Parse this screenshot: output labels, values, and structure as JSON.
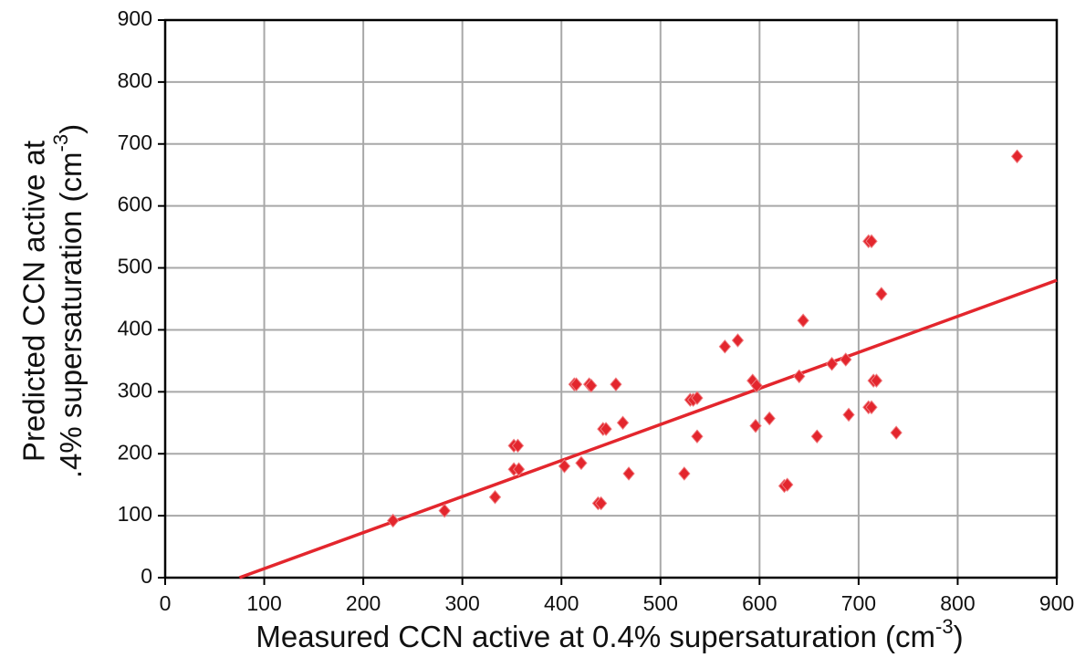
{
  "chart_data": {
    "type": "scatter",
    "xlabel": [
      "Measured CCN active at 0.4% supersaturation (cm",
      "-3",
      ")"
    ],
    "ylabel": [
      "Predicted CCN active at",
      ".4% supersaturation (cm",
      "-3",
      ")"
    ],
    "xlim": [
      0,
      900
    ],
    "ylim": [
      0,
      900
    ],
    "xticks": [
      0,
      100,
      200,
      300,
      400,
      500,
      600,
      700,
      800,
      900
    ],
    "yticks": [
      0,
      100,
      200,
      300,
      400,
      500,
      600,
      700,
      800,
      900
    ],
    "grid": true,
    "color": "#e3262d",
    "x": [
      230,
      282,
      333,
      352,
      356,
      352,
      357,
      403,
      413,
      415,
      420,
      428,
      430,
      437,
      440,
      442,
      445,
      455,
      462,
      468,
      524,
      530,
      533,
      537,
      537,
      565,
      578,
      593,
      596,
      597,
      610,
      625,
      628,
      640,
      644,
      658,
      673,
      687,
      690,
      710,
      713,
      710,
      713,
      715,
      718,
      723,
      738,
      860
    ],
    "values": [
      92,
      108,
      130,
      213,
      213,
      175,
      175,
      180,
      312,
      312,
      185,
      312,
      310,
      120,
      120,
      240,
      240,
      312,
      250,
      168,
      168,
      287,
      287,
      290,
      228,
      373,
      383,
      318,
      245,
      310,
      257,
      148,
      150,
      325,
      415,
      228,
      345,
      352,
      263,
      543,
      543,
      275,
      275,
      318,
      318,
      458,
      234,
      680
    ],
    "trendline": {
      "x": [
        75,
        900
      ],
      "y": [
        0,
        480
      ],
      "color": "#e3262d"
    }
  }
}
